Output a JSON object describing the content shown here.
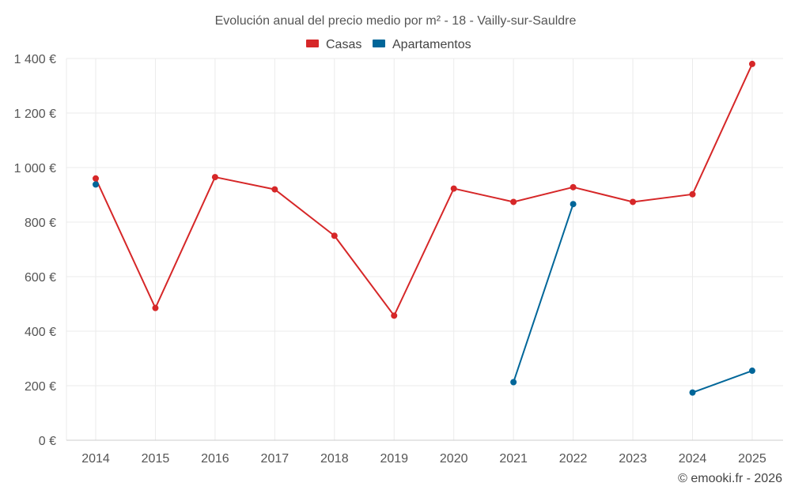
{
  "chart_data": {
    "type": "line",
    "title": "Evolución anual del precio medio por m² - 18 - Vailly-sur-Sauldre",
    "categories": [
      "2014",
      "2015",
      "2016",
      "2017",
      "2018",
      "2019",
      "2020",
      "2021",
      "2022",
      "2023",
      "2024",
      "2025"
    ],
    "series": [
      {
        "name": "Casas",
        "color": "#d62728",
        "values": [
          960,
          485,
          965,
          920,
          750,
          457,
          923,
          874,
          928,
          874,
          902,
          1380
        ]
      },
      {
        "name": "Apartamentos",
        "color": "#006699",
        "values": [
          938,
          null,
          null,
          null,
          null,
          null,
          null,
          213,
          866,
          null,
          175,
          255
        ]
      }
    ],
    "ylim": [
      0,
      1400
    ],
    "yticks": [
      0,
      200,
      400,
      600,
      800,
      1000,
      1200,
      1400
    ],
    "ytick_labels": [
      "0 €",
      "200 €",
      "400 €",
      "600 €",
      "800 €",
      "1 000 €",
      "1 200 €",
      "1 400 €"
    ],
    "xlabel": "",
    "ylabel": "",
    "grid": true,
    "legend_position": "top-center"
  },
  "credit": "© emooki.fr - 2026"
}
